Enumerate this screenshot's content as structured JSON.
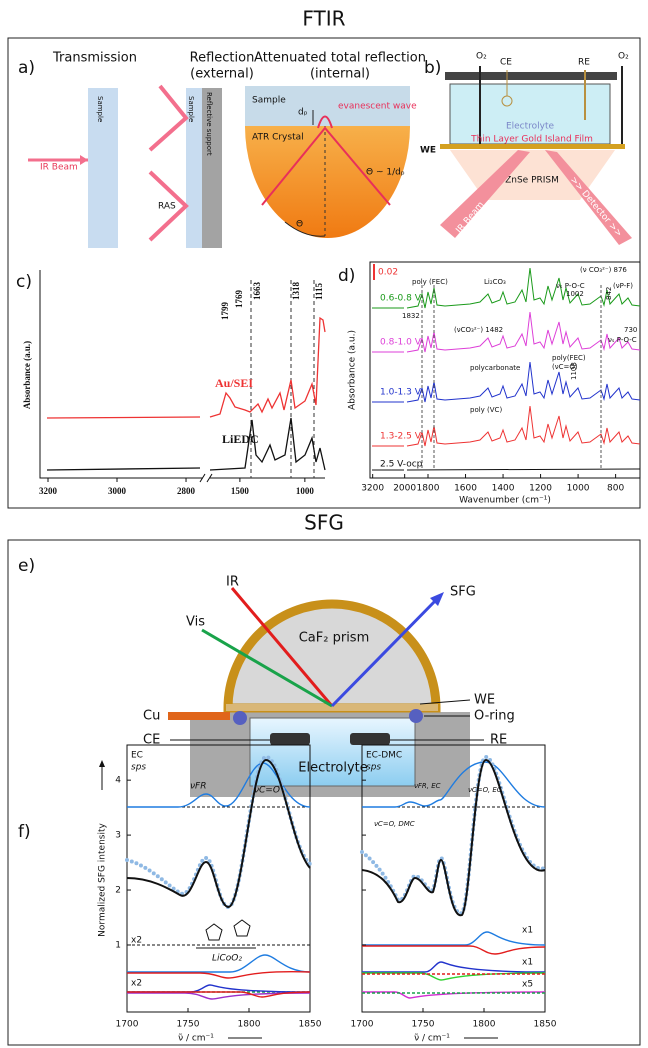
{
  "ftir": {
    "title": "FTIR",
    "a": {
      "label": "a)",
      "transmission": "Transmission",
      "reflection": "Reflection",
      "reflection_note": "(external)",
      "atr": "Attenuated total reflection",
      "atr_note": "(internal)",
      "sample_transmission": "Sample",
      "ir_beam": "IR Beam",
      "sample_reflection": "Sample",
      "reflective_support": "Reflective support",
      "ras": "RAS",
      "sample_atr": "Sample",
      "atr_crystal": "ATR Crystal",
      "penetration_depth": "dₚ",
      "evanescent_wave": "evanescent wave",
      "angle_relation": "Θ ~ 1/dₚ",
      "angle": "Θ"
    },
    "b": {
      "label": "b)",
      "o2_left": "O₂",
      "ce": "CE",
      "re": "RE",
      "o2_right": "O₂",
      "electrolyte": "Electrolyte",
      "we": "WE",
      "film": "Thin Layer Gold Island Film",
      "prism": "ZnSe PRISM",
      "ir_beam": "IR Beam",
      "detector": ">> Detector >>"
    },
    "c": {
      "label": "c)",
      "y_label": "Absorbance (a.u.)",
      "xlim_left": [
        3200,
        2745
      ],
      "xticks_left": [
        3200,
        3000,
        2800
      ],
      "xlim_right": [
        1730,
        845
      ],
      "xticks_right": [
        1500,
        1000
      ],
      "peak_labels": [
        1799,
        1769,
        1663,
        1318,
        1115
      ],
      "traces": [
        "Au/SEI",
        "LiEDC"
      ]
    },
    "d": {
      "label": "d)",
      "scale_bar": 0.02,
      "y_label": "Absorbance (a.u.)",
      "x_label": "Wavenumber (cm⁻¹)",
      "xlim_left": [
        3300,
        1950
      ],
      "xticks_left": [
        3200,
        2000
      ],
      "xlim_right": [
        1920,
        670
      ],
      "xticks_right": [
        1800,
        1600,
        1400,
        1200,
        1000,
        800
      ],
      "traces": [
        "0.6-0.8 V",
        "0.8-1.0 V",
        "1.0-1.3 V",
        "1.3-2.5 V",
        "2.5 V-ocp"
      ],
      "annotations": [
        "poly (FEC)",
        "Li₂CO₃",
        "(ν CO₃²⁻) 876",
        "νₛ P-O-C",
        1002,
        842,
        "(νP-F)",
        1832,
        "(νCO₃²⁻) 1482",
        730,
        "νₛ P-O-C",
        "polycarbonate",
        "poly(FEC)",
        "(νC=O)",
        1108,
        "poly (VC)"
      ]
    }
  },
  "sfg": {
    "title": "SFG",
    "e": {
      "label": "e)",
      "ir": "IR",
      "vis": "Vis",
      "prism": "CaF₂ prism",
      "sfg": "SFG",
      "we": "WE",
      "o_ring": "O-ring",
      "cu": "Cu",
      "ce": "CE",
      "re": "RE",
      "electrolyte": "Electrolyte"
    },
    "f": {
      "label": "f)",
      "y_label": "Normalized SFG intensity",
      "x_label": "ν̃ / cm⁻¹",
      "xlim": [
        1700,
        1850
      ],
      "xticks": [
        1700,
        1750,
        1800,
        1850
      ],
      "ylim": [
        -0.22,
        4.64
      ],
      "yticks": [
        1,
        2,
        3,
        4
      ],
      "left": {
        "sample": "EC",
        "polarization": "sps",
        "mode_fr": "νFR",
        "mode_co": "νC=O",
        "surface": "LiCoO₂",
        "scales": [
          "x2",
          "x2"
        ]
      },
      "right": {
        "sample": "EC-DMC",
        "polarization": "sps",
        "mode_fr": "νFR, EC",
        "mode_co_ec": "νC=O, EC",
        "mode_co_dmc": "νC=O, DMC",
        "scales": [
          "x1",
          "x1",
          "x5"
        ]
      }
    }
  }
}
